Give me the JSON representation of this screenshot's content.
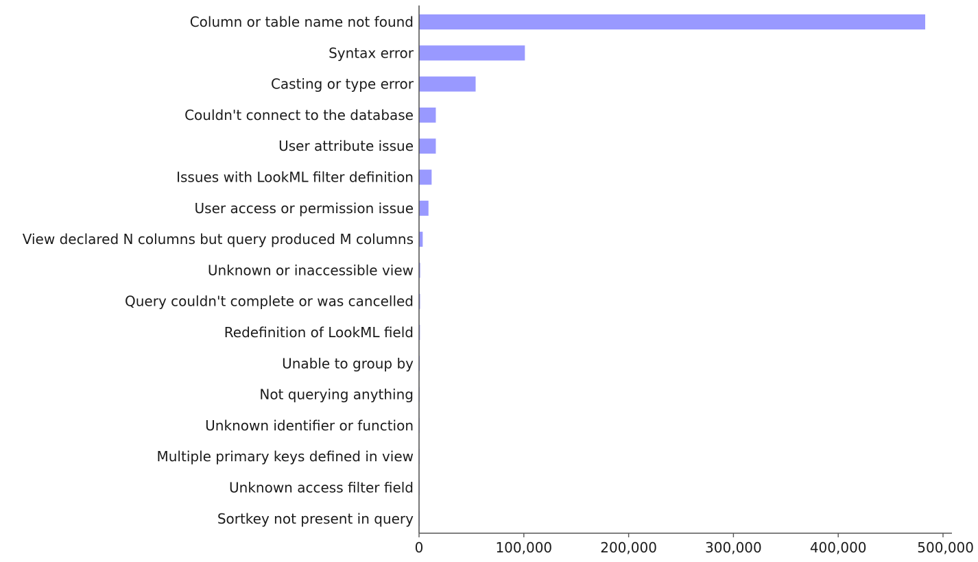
{
  "chart_data": {
    "type": "bar",
    "orientation": "horizontal",
    "title": "",
    "xlabel": "",
    "ylabel": "",
    "bar_color": "#9999ff",
    "axis_color": "#555555",
    "grid": false,
    "legend": "none",
    "xlim": [
      0,
      500000
    ],
    "x_ticks": [
      0,
      100000,
      200000,
      300000,
      400000,
      500000
    ],
    "x_tick_labels": [
      "0",
      "100,000",
      "200,000",
      "300,000",
      "400,000",
      "500,000"
    ],
    "categories": [
      "Column or table name not found",
      "Syntax error",
      "Casting or type error",
      "Couldn't connect to the database",
      "User attribute issue",
      "Issues with LookML filter definition",
      "User access or permission issue",
      "View declared N columns but query produced M columns",
      "Unknown or inaccessible view",
      "Query couldn't complete or was cancelled",
      "Redefinition of LookML field",
      "Unable to group by",
      "Not querying anything",
      "Unknown identifier or function",
      "Multiple primary keys defined in view",
      "Unknown access filter field",
      "Sortkey not present in query"
    ],
    "values": [
      483000,
      101000,
      54000,
      16000,
      16000,
      12000,
      9000,
      3500,
      1100,
      1000,
      900,
      700,
      300,
      250,
      200,
      150,
      100
    ]
  }
}
